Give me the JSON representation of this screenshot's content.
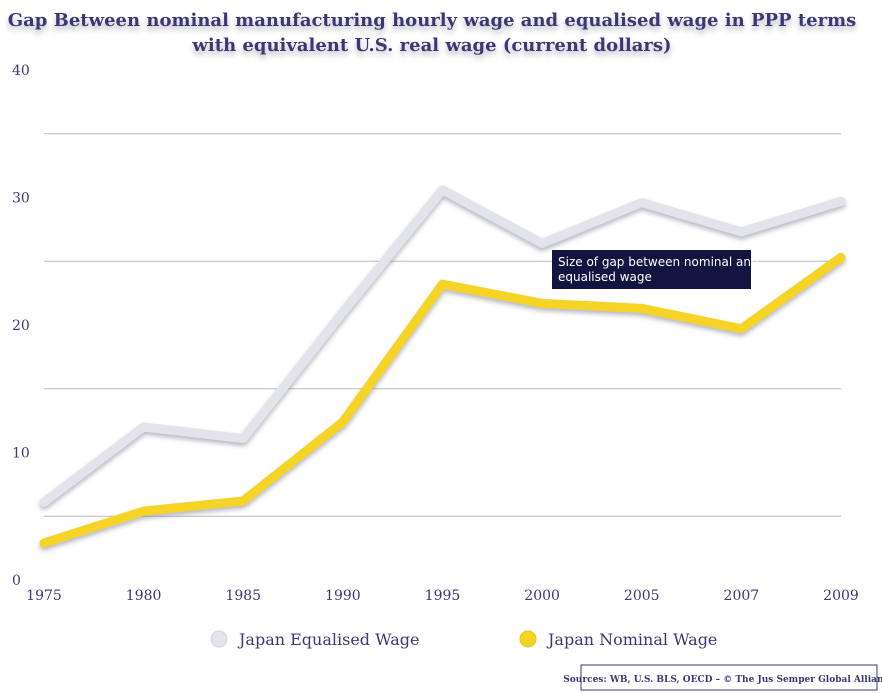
{
  "chart_data": {
    "type": "line",
    "title": "Gap Between nominal manufacturing hourly wage and equalised wage in PPP terms",
    "subtitle": "with equivalent U.S. real wage (current dollars)",
    "categories": [
      "1975",
      "1980",
      "1985",
      "1990",
      "1995",
      "2000",
      "2005",
      "2007",
      "2009"
    ],
    "series": [
      {
        "name": "Japan Equalised Wage",
        "color": "#e3e3ec",
        "values": [
          6.1,
          12.0,
          11.1,
          21.0,
          30.6,
          26.4,
          29.6,
          27.3,
          29.7
        ]
      },
      {
        "name": "Japan Nominal Wage",
        "color": "#f5d426",
        "values": [
          2.9,
          5.4,
          6.2,
          12.4,
          23.2,
          21.7,
          21.3,
          19.7,
          25.3
        ]
      }
    ],
    "ylim": [
      0,
      40
    ],
    "yticks": [
      0,
      10,
      20,
      30,
      40
    ],
    "grid": true,
    "legend": "bottom",
    "annotation": {
      "line1": "Size of gap between nominal and",
      "line2": "equalised wage"
    },
    "source": "Sources: WB, U.S. BLS, OECD – © The Jus Semper Global Alliance"
  }
}
